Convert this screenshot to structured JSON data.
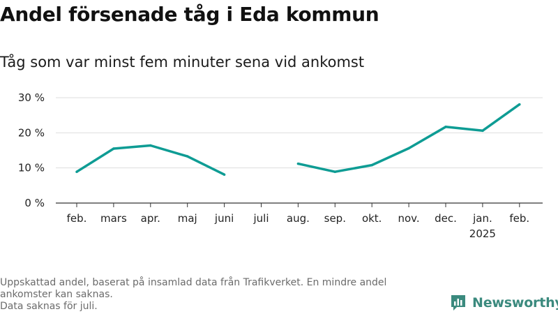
{
  "title": "Andel försenade tåg i Eda kommun",
  "subtitle": "Tåg som var minst fem minuter sena vid ankomst",
  "footnote": {
    "line1": "Uppskattad andel, baserat på insamlad data från Trafikverket. En mindre andel",
    "line2": "ankomster kan saknas.",
    "line3": "Data saknas för juli."
  },
  "brand": "Newsworthy",
  "colors": {
    "line": "#0e9c94",
    "grid": "#dddddd",
    "axis": "#333333",
    "brand": "#3b8a7e"
  },
  "icons": {
    "logo": "bar-chart-logo-icon"
  },
  "chart_data": {
    "type": "line",
    "title": "Andel försenade tåg i Eda kommun",
    "subtitle": "Tåg som var minst fem minuter sena vid ankomst",
    "categories": [
      "feb.",
      "mars",
      "apr.",
      "maj",
      "juni",
      "juli",
      "aug.",
      "sep.",
      "okt.",
      "nov.",
      "dec.",
      "jan.",
      "feb."
    ],
    "year_label": {
      "category_index": 11,
      "text": "2025"
    },
    "series": [
      {
        "values": [
          8.9,
          15.5,
          16.4,
          13.3,
          8.1,
          null,
          11.2,
          8.9,
          10.8,
          15.6,
          21.7,
          20.6,
          28.1
        ]
      }
    ],
    "unit": "%",
    "ylim": [
      0,
      30
    ],
    "yticks": [
      0,
      10,
      20,
      30
    ],
    "ytick_labels": [
      "0 %",
      "10 %",
      "20 %",
      "30 %"
    ],
    "grid": true,
    "legend": "none",
    "xlabel": "",
    "ylabel": ""
  }
}
